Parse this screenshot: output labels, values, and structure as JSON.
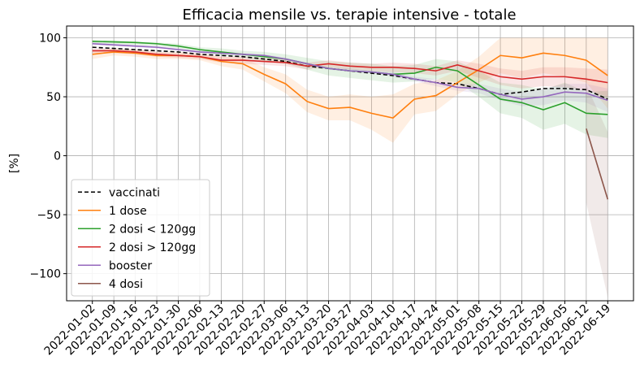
{
  "chart_data": {
    "type": "line",
    "title": "Efficacia mensile vs. terapie intensive - totale",
    "y_label": "[%]",
    "categories": [
      "2022-01-02",
      "2022-01-09",
      "2022-01-16",
      "2022-01-23",
      "2022-01-30",
      "2022-02-06",
      "2022-02-13",
      "2022-02-20",
      "2022-02-27",
      "2022-03-06",
      "2022-03-13",
      "2022-03-20",
      "2022-03-27",
      "2022-04-03",
      "2022-04-10",
      "2022-04-17",
      "2022-04-24",
      "2022-05-01",
      "2022-05-08",
      "2022-05-15",
      "2022-05-22",
      "2022-05-29",
      "2022-06-05",
      "2022-06-12",
      "2022-06-19"
    ],
    "ylim": [
      -123,
      110
    ],
    "yticks": [
      {
        "value": -100,
        "label": "−100"
      },
      {
        "value": -50,
        "label": "−50"
      },
      0,
      50,
      100
    ],
    "grid": true,
    "legend": "lower left",
    "series": [
      {
        "name": "vaccinati",
        "color": "#000000",
        "dashed": true,
        "values": [
          92,
          91,
          90,
          89,
          88,
          86,
          85,
          84,
          82,
          80,
          76,
          74,
          72,
          70,
          68,
          65,
          62,
          61,
          57,
          52,
          54,
          57,
          57,
          56,
          48
        ]
      },
      {
        "name": "1 dose",
        "color": "#ff7f0e",
        "values": [
          86,
          88,
          87,
          85,
          85,
          84,
          80,
          78,
          69,
          61,
          46,
          40,
          41,
          36,
          32,
          48,
          51,
          62,
          73,
          85,
          83,
          87,
          85,
          81,
          68
        ],
        "lower": [
          82,
          85,
          84,
          82,
          82,
          81,
          76,
          73,
          63,
          53,
          37,
          30,
          30,
          22,
          11,
          35,
          38,
          52,
          62,
          70,
          66,
          70,
          67,
          62,
          40
        ],
        "upper": [
          89,
          91,
          90,
          88,
          88,
          87,
          84,
          83,
          75,
          69,
          56,
          50,
          52,
          50,
          52,
          61,
          64,
          72,
          84,
          100,
          100,
          100,
          100,
          100,
          100
        ]
      },
      {
        "name": "2 dosi < 120gg",
        "color": "#2ca02c",
        "values": [
          97,
          96.5,
          96,
          95,
          93,
          90,
          88,
          86,
          84,
          82,
          78,
          74,
          72,
          71,
          69,
          70,
          75,
          72,
          60,
          48,
          45,
          39,
          45,
          36,
          35
        ],
        "lower": [
          95,
          95,
          94,
          93,
          91,
          88,
          85,
          83,
          80,
          78,
          73,
          68,
          66,
          64,
          62,
          63,
          65,
          62,
          50,
          36,
          32,
          22,
          27,
          18,
          15
        ],
        "upper": [
          98,
          98,
          97,
          96,
          95,
          92,
          91,
          89,
          88,
          86,
          83,
          80,
          79,
          78,
          76,
          77,
          82,
          80,
          72,
          62,
          60,
          56,
          62,
          54,
          55
        ]
      },
      {
        "name": "2 dosi > 120gg",
        "color": "#d62728",
        "values": [
          89,
          89,
          88,
          86,
          85,
          84,
          81,
          81,
          80,
          79,
          76,
          78,
          76,
          75,
          75,
          74,
          72,
          77,
          72,
          67,
          65,
          67,
          67,
          65,
          62
        ],
        "lower": [
          87,
          87,
          86,
          84,
          83,
          82,
          79,
          78,
          77,
          76,
          73,
          75,
          73,
          72,
          71,
          70,
          68,
          72,
          66,
          60,
          57,
          59,
          58,
          55,
          50
        ],
        "upper": [
          91,
          91,
          90,
          88,
          87,
          86,
          84,
          84,
          83,
          82,
          79,
          81,
          79,
          78,
          79,
          78,
          76,
          81,
          78,
          74,
          72,
          75,
          75,
          74,
          73
        ]
      },
      {
        "name": "booster",
        "color": "#9467bd",
        "values": [
          95,
          94,
          93,
          92,
          90,
          88,
          87,
          86,
          85,
          82,
          78,
          74,
          72,
          71,
          69,
          65,
          62,
          58,
          57,
          52,
          48,
          50,
          54,
          53,
          47
        ],
        "lower": [
          94,
          93,
          92,
          91,
          89,
          87,
          86,
          85,
          84,
          81,
          77,
          73,
          71,
          70,
          67,
          63,
          59,
          55,
          53,
          47,
          42,
          43,
          47,
          45,
          37
        ],
        "upper": [
          96,
          95,
          94,
          93,
          91,
          89,
          88,
          87,
          86,
          83,
          79,
          75,
          74,
          72,
          71,
          67,
          65,
          61,
          61,
          57,
          54,
          57,
          61,
          61,
          57
        ]
      },
      {
        "name": "4 dosi",
        "color": "#8c564b",
        "values": [
          null,
          null,
          null,
          null,
          null,
          null,
          null,
          null,
          null,
          null,
          null,
          null,
          null,
          null,
          null,
          null,
          null,
          null,
          null,
          null,
          null,
          null,
          null,
          23,
          -37
        ],
        "lower": [
          null,
          null,
          null,
          null,
          null,
          null,
          null,
          null,
          null,
          null,
          null,
          null,
          null,
          null,
          null,
          null,
          null,
          null,
          null,
          null,
          null,
          null,
          null,
          -40,
          -120
        ],
        "upper": [
          null,
          null,
          null,
          null,
          null,
          null,
          null,
          null,
          null,
          null,
          null,
          null,
          null,
          null,
          null,
          null,
          null,
          null,
          null,
          null,
          null,
          null,
          null,
          60,
          20
        ]
      }
    ]
  }
}
